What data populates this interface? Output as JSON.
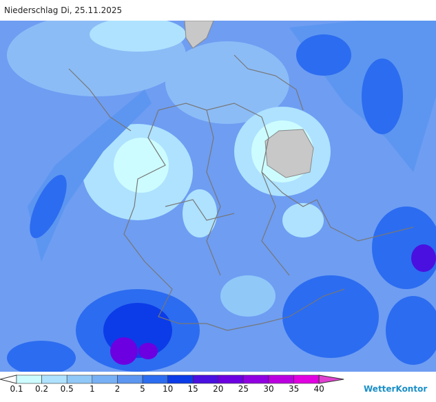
{
  "header": {
    "title": "Niederschlag Di, 25.11.2025"
  },
  "legend": {
    "ticks": [
      "0.1",
      "0.2",
      "0.5",
      "1",
      "2",
      "5",
      "10",
      "15",
      "20",
      "25",
      "30",
      "35",
      "40"
    ],
    "colors": [
      "#ffffff",
      "#ccfcff",
      "#aee2ff",
      "#90c8f8",
      "#78b0f5",
      "#5c96f0",
      "#2c6cf0",
      "#0c3ce8",
      "#4a10e0",
      "#6c00e0",
      "#9000e0",
      "#bb00e0",
      "#e000e0",
      "#e040d0"
    ]
  },
  "brand": "WetterKontor"
}
